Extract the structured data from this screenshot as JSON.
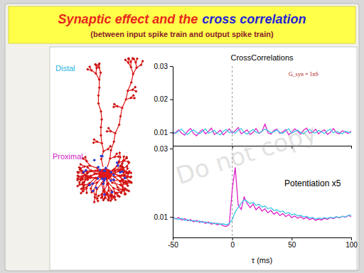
{
  "slide": {
    "title": [
      {
        "text": "Synaptic effect and the",
        "color": "#e8261c"
      },
      {
        "text": "cross correlation",
        "color": "#2323d8"
      }
    ],
    "subtitle": "(between input spike train and output spike train)",
    "labels": [
      {
        "text": "Distal",
        "color": "#22b4e0"
      },
      {
        "text": "Proximal",
        "color": "#d020c8"
      }
    ],
    "watermark": "Do not copy"
  },
  "chart_data": [
    {
      "type": "line",
      "title": "CrossCorrelations",
      "annotations": [
        "G_syn = 1nS"
      ],
      "x": [
        -50,
        -47.5,
        -45,
        -42.5,
        -40,
        -37.5,
        -35,
        -32.5,
        -30,
        -27.5,
        -25,
        -22.5,
        -20,
        -17.5,
        -15,
        -12.5,
        -10,
        -7.5,
        -5,
        -2.5,
        0,
        2.5,
        5,
        7.5,
        10,
        12.5,
        15,
        17.5,
        20,
        22.5,
        25,
        27.5,
        30,
        32.5,
        35,
        37.5,
        40,
        42.5,
        45,
        47.5,
        50,
        52.5,
        55,
        57.5,
        60,
        62.5,
        65,
        67.5,
        70,
        72.5,
        75,
        77.5,
        80,
        82.5,
        85,
        87.5,
        90,
        92.5,
        95,
        97.5,
        100
      ],
      "series": [
        {
          "color": "#e020c8",
          "values": [
            0.0095,
            0.01,
            0.0108,
            0.0098,
            0.0092,
            0.0104,
            0.0112,
            0.0097,
            0.009,
            0.0101,
            0.0109,
            0.0096,
            0.0103,
            0.0113,
            0.0094,
            0.0099,
            0.0107,
            0.0093,
            0.0102,
            0.0111,
            0.0098,
            0.0105,
            0.0115,
            0.0096,
            0.0101,
            0.0108,
            0.0094,
            0.01,
            0.0112,
            0.0097,
            0.0103,
            0.0125,
            0.0099,
            0.0095,
            0.0106,
            0.011,
            0.0097,
            0.0102,
            0.0109,
            0.0093,
            0.01,
            0.0111,
            0.0104,
            0.0095,
            0.0107,
            0.0113,
            0.0098,
            0.0101,
            0.011,
            0.0096,
            0.0103,
            0.0108,
            0.0094,
            0.01,
            0.0112,
            0.0099,
            0.0096,
            0.0105,
            0.0101,
            0.0097,
            0.0104
          ]
        },
        {
          "color": "#3cc8e6",
          "values": [
            0.0102,
            0.0097,
            0.0105,
            0.011,
            0.0099,
            0.0094,
            0.0103,
            0.0108,
            0.01,
            0.0096,
            0.0104,
            0.0111,
            0.0098,
            0.0101,
            0.0106,
            0.0097,
            0.0093,
            0.0104,
            0.0109,
            0.0099,
            0.0102,
            0.0098,
            0.0107,
            0.0112,
            0.01,
            0.0095,
            0.0103,
            0.0109,
            0.0101,
            0.0098,
            0.0104,
            0.011,
            0.0106,
            0.0099,
            0.0102,
            0.0108,
            0.01,
            0.0097,
            0.0105,
            0.0111,
            0.0098,
            0.0103,
            0.0107,
            0.01,
            0.0096,
            0.0104,
            0.0109,
            0.0101,
            0.0098,
            0.0106,
            0.0102,
            0.0097,
            0.0105,
            0.011,
            0.0099,
            0.0103,
            0.01,
            0.0096,
            0.0104,
            0.0101,
            0.0099
          ]
        }
      ],
      "xlim": [
        -50,
        100
      ],
      "xticks": [
        -50,
        0,
        50,
        100
      ],
      "ylim": [
        0.006,
        0.03
      ],
      "yticks": [
        0.01,
        0.02,
        0.03
      ],
      "vline": 0,
      "tick_labels": "y"
    },
    {
      "type": "line",
      "annotations": [
        "Potentiation x5"
      ],
      "xlabel": "τ (ms)",
      "x": [
        -50,
        -47.5,
        -45,
        -42.5,
        -40,
        -37.5,
        -35,
        -32.5,
        -30,
        -27.5,
        -25,
        -22.5,
        -20,
        -17.5,
        -15,
        -12.5,
        -10,
        -7.5,
        -5,
        -2.5,
        0,
        2.5,
        5,
        7.5,
        10,
        12.5,
        15,
        17.5,
        20,
        22.5,
        25,
        27.5,
        30,
        32.5,
        35,
        37.5,
        40,
        42.5,
        45,
        47.5,
        50,
        52.5,
        55,
        57.5,
        60,
        62.5,
        65,
        67.5,
        70,
        72.5,
        75,
        77.5,
        80,
        82.5,
        85,
        87.5,
        90,
        92.5,
        95,
        97.5,
        100
      ],
      "series": [
        {
          "color": "#e020c8",
          "values": [
            0.01,
            0.0094,
            0.0098,
            0.0091,
            0.0095,
            0.0089,
            0.0092,
            0.0086,
            0.009,
            0.0084,
            0.0087,
            0.0081,
            0.0085,
            0.0079,
            0.0082,
            0.0077,
            0.008,
            0.0074,
            0.0072,
            0.0078,
            0.018,
            0.0245,
            0.0135,
            0.0122,
            0.0158,
            0.014,
            0.0127,
            0.0138,
            0.0121,
            0.013,
            0.0117,
            0.0124,
            0.0112,
            0.0119,
            0.0108,
            0.0114,
            0.0104,
            0.011,
            0.0101,
            0.0107,
            0.0098,
            0.0103,
            0.0096,
            0.0101,
            0.0094,
            0.0099,
            0.0092,
            0.0096,
            0.009,
            0.0094,
            0.0091,
            0.0096,
            0.0093,
            0.0098,
            0.0095,
            0.01,
            0.0097,
            0.0102,
            0.0099,
            0.0104,
            0.0101
          ]
        },
        {
          "color": "#3cc8e6",
          "values": [
            0.0098,
            0.0095,
            0.0093,
            0.0096,
            0.009,
            0.0092,
            0.0088,
            0.009,
            0.0086,
            0.0088,
            0.0084,
            0.0086,
            0.0082,
            0.0084,
            0.008,
            0.0082,
            0.0078,
            0.008,
            0.0077,
            0.0081,
            0.0092,
            0.0115,
            0.0128,
            0.014,
            0.015,
            0.0146,
            0.0139,
            0.0143,
            0.0134,
            0.0137,
            0.0129,
            0.0132,
            0.0124,
            0.0127,
            0.0119,
            0.0121,
            0.0115,
            0.0117,
            0.011,
            0.0113,
            0.0106,
            0.0109,
            0.0103,
            0.0105,
            0.01,
            0.0102,
            0.0097,
            0.0099,
            0.0094,
            0.0097,
            0.0095,
            0.0098,
            0.0096,
            0.0099,
            0.0097,
            0.0101,
            0.0098,
            0.0102,
            0.01,
            0.0104,
            0.0106
          ]
        }
      ],
      "xlim": [
        -50,
        100
      ],
      "xticks": [
        -50,
        0,
        50,
        100
      ],
      "ylim": [
        0.004,
        0.03
      ],
      "yticks": [
        0.01,
        0.03
      ],
      "vline": 0
    }
  ]
}
